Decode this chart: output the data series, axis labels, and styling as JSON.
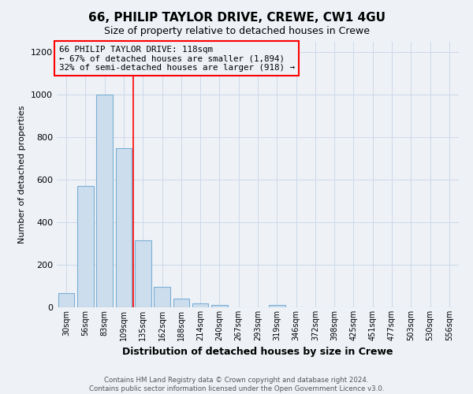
{
  "title": "66, PHILIP TAYLOR DRIVE, CREWE, CW1 4GU",
  "subtitle": "Size of property relative to detached houses in Crewe",
  "xlabel": "Distribution of detached houses by size in Crewe",
  "ylabel": "Number of detached properties",
  "bar_color": "#ccdded",
  "bar_edge_color": "#7aafd4",
  "bin_labels": [
    "30sqm",
    "56sqm",
    "83sqm",
    "109sqm",
    "135sqm",
    "162sqm",
    "188sqm",
    "214sqm",
    "240sqm",
    "267sqm",
    "293sqm",
    "319sqm",
    "346sqm",
    "372sqm",
    "398sqm",
    "425sqm",
    "451sqm",
    "477sqm",
    "503sqm",
    "530sqm",
    "556sqm"
  ],
  "bar_heights": [
    65,
    570,
    1000,
    750,
    315,
    95,
    40,
    20,
    10,
    0,
    0,
    10,
    0,
    0,
    0,
    0,
    0,
    0,
    0,
    0,
    0
  ],
  "ylim": [
    0,
    1250
  ],
  "yticks": [
    0,
    200,
    400,
    600,
    800,
    1000,
    1200
  ],
  "vline_x": 3.5,
  "annotation_line1": "66 PHILIP TAYLOR DRIVE: 118sqm",
  "annotation_line2": "← 67% of detached houses are smaller (1,894)",
  "annotation_line3": "32% of semi-detached houses are larger (918) →",
  "footer1": "Contains HM Land Registry data © Crown copyright and database right 2024.",
  "footer2": "Contains public sector information licensed under the Open Government Licence v3.0.",
  "background_color": "#eef2f7",
  "grid_color": "#ccd8e8"
}
